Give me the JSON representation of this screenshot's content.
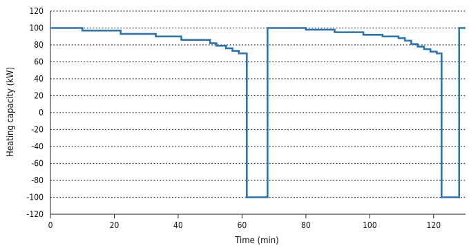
{
  "chart_data": {
    "type": "line",
    "xlabel": "Time (min)",
    "ylabel": "Heating capacity (kW)",
    "xlim": [
      0,
      130
    ],
    "ylim": [
      -120,
      120
    ],
    "x_ticks": [
      0,
      20,
      40,
      60,
      80,
      100,
      120
    ],
    "y_ticks": [
      120,
      100,
      80,
      60,
      40,
      20,
      0,
      -20,
      -40,
      -60,
      -80,
      -100,
      -120
    ],
    "x_tick_labels": [
      "0",
      "20",
      "40",
      "60",
      "80",
      "100",
      "120"
    ],
    "y_tick_labels": [
      "120",
      "100",
      "80",
      "60",
      "40",
      "20",
      "0",
      "-20",
      "-40",
      "-60",
      "-80",
      "-100",
      "-120"
    ],
    "grid": "horizontal dotted",
    "series": [
      {
        "color": "#2a74b2",
        "step": true,
        "points": [
          [
            0,
            100
          ],
          [
            10,
            97
          ],
          [
            22,
            93
          ],
          [
            33,
            90
          ],
          [
            41,
            86
          ],
          [
            50,
            82
          ],
          [
            52,
            79
          ],
          [
            55,
            76
          ],
          [
            57,
            73
          ],
          [
            59,
            70
          ],
          [
            61.5,
            70
          ],
          [
            61.5,
            -100
          ],
          [
            68,
            -100
          ],
          [
            68,
            100
          ],
          [
            80,
            98
          ],
          [
            89,
            95
          ],
          [
            98,
            92
          ],
          [
            104,
            90
          ],
          [
            109,
            88
          ],
          [
            111,
            85
          ],
          [
            113,
            81
          ],
          [
            115,
            78
          ],
          [
            117,
            75
          ],
          [
            119,
            72
          ],
          [
            121,
            70
          ],
          [
            122.5,
            70
          ],
          [
            122.5,
            -100
          ],
          [
            128,
            -100
          ],
          [
            128,
            100
          ],
          [
            130,
            100
          ]
        ]
      }
    ]
  }
}
